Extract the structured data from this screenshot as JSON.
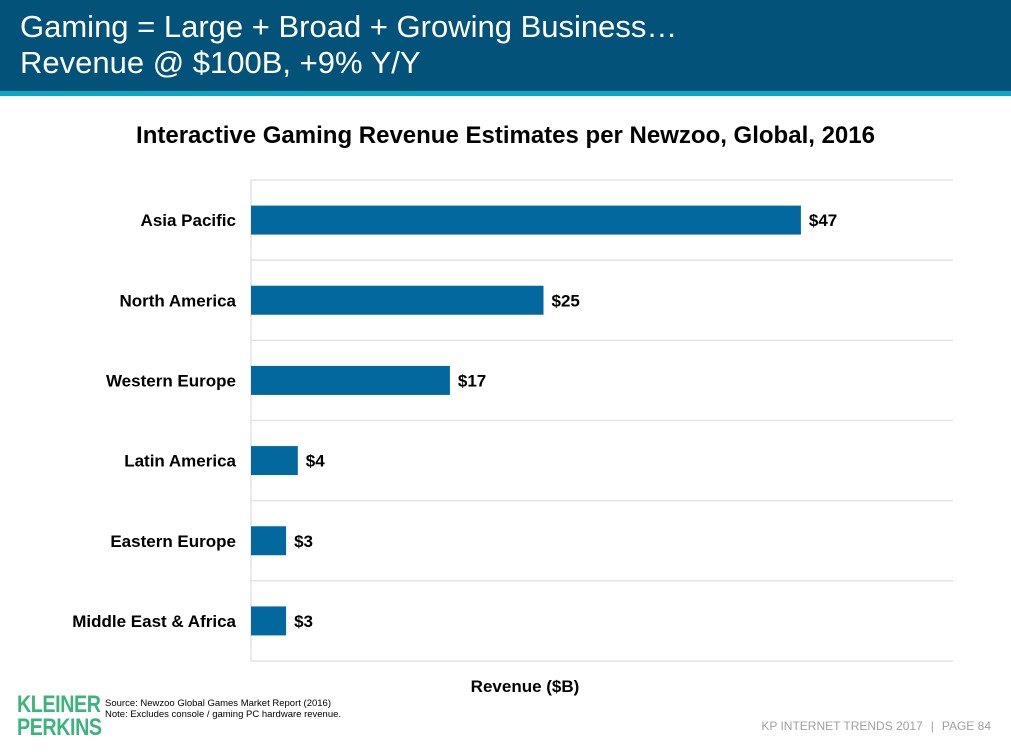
{
  "header": {
    "line1": "Gaming = Large + Broad + Growing Business…",
    "line2": "Revenue @ $100B, +9% Y/Y"
  },
  "colors": {
    "header_bg": "#02527a",
    "header_stripe": "#0aa7c2",
    "bar": "#02689e",
    "logo": "#3bb47e",
    "gridline": "#e3e3e3"
  },
  "chart_data": {
    "type": "bar",
    "orientation": "horizontal",
    "title": "Interactive Gaming Revenue Estimates per Newzoo, Global, 2016",
    "xlabel": "Revenue ($B)",
    "ylabel": "",
    "categories": [
      "Asia Pacific",
      "North America",
      "Western Europe",
      "Latin America",
      "Eastern Europe",
      "Middle East & Africa"
    ],
    "values": [
      47,
      25,
      17,
      4,
      3,
      3
    ],
    "data_labels": [
      "$47",
      "$25",
      "$17",
      "$4",
      "$3",
      "$3"
    ],
    "xlim": [
      0,
      60
    ],
    "grid": "horizontal separators between categories",
    "legend": "none"
  },
  "footer": {
    "logo_line1": "KLEINER",
    "logo_line2": "PERKINS",
    "source": "Source: Newzoo Global Games Market Report (2016)",
    "note": "Note: Excludes console / gaming PC hardware revenue.",
    "report": "KP INTERNET TRENDS 2017",
    "separator": "|",
    "page": "PAGE 84"
  }
}
